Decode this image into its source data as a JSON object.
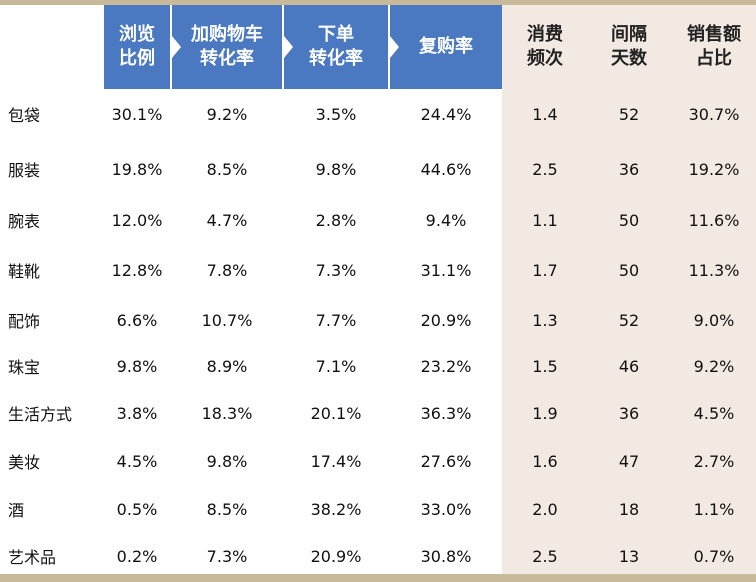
{
  "table": {
    "headers": [
      "浏览\n比例",
      "加购物车\n转化率",
      "下单\n转化率",
      "复购率",
      "消费\n频次",
      "间隔\n天数",
      "销售额\n占比"
    ],
    "rows": [
      {
        "category": "包袋",
        "values": [
          "30.1%",
          "9.2%",
          "3.5%",
          "24.4%",
          "1.4",
          "52",
          "30.7%"
        ]
      },
      {
        "category": "服装",
        "values": [
          "19.8%",
          "8.5%",
          "9.8%",
          "44.6%",
          "2.5",
          "36",
          "19.2%"
        ]
      },
      {
        "category": "腕表",
        "values": [
          "12.0%",
          "4.7%",
          "2.8%",
          "9.4%",
          "1.1",
          "50",
          "11.6%"
        ]
      },
      {
        "category": "鞋靴",
        "values": [
          "12.8%",
          "7.8%",
          "7.3%",
          "31.1%",
          "1.7",
          "50",
          "11.3%"
        ]
      },
      {
        "category": "配饰",
        "values": [
          "6.6%",
          "10.7%",
          "7.7%",
          "20.9%",
          "1.3",
          "52",
          "9.0%"
        ]
      },
      {
        "category": "珠宝",
        "values": [
          "9.8%",
          "8.9%",
          "7.1%",
          "23.2%",
          "1.5",
          "46",
          "9.2%"
        ]
      },
      {
        "category": "生活方式",
        "values": [
          "3.8%",
          "18.3%",
          "20.1%",
          "36.3%",
          "1.9",
          "36",
          "4.5%"
        ]
      },
      {
        "category": "美妆",
        "values": [
          "4.5%",
          "9.8%",
          "17.4%",
          "27.6%",
          "1.6",
          "47",
          "2.7%"
        ]
      },
      {
        "category": "酒",
        "values": [
          "0.5%",
          "8.5%",
          "38.2%",
          "33.0%",
          "2.0",
          "18",
          "1.1%"
        ]
      },
      {
        "category": "艺术品",
        "values": [
          "0.2%",
          "7.3%",
          "20.9%",
          "30.8%",
          "2.5",
          "13",
          "0.7%"
        ]
      }
    ]
  },
  "colors": {
    "header_blue": "#4a78c1",
    "beige_columns": "#f1e9e2",
    "gold_rule": "#c9b99b"
  }
}
